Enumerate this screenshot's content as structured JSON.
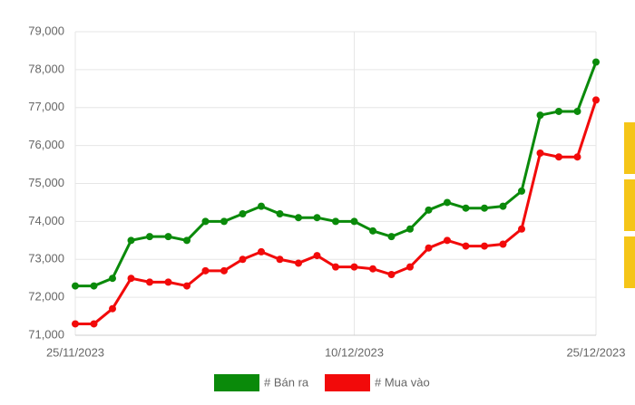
{
  "chart_data": {
    "type": "line",
    "categories": [
      "25/11/2023",
      null,
      null,
      null,
      null,
      null,
      null,
      null,
      null,
      null,
      null,
      null,
      null,
      null,
      null,
      "10/12/2023",
      null,
      null,
      null,
      null,
      null,
      null,
      null,
      null,
      null,
      null,
      null,
      null,
      "25/12/2023"
    ],
    "series": [
      {
        "name": "# Bán ra",
        "color": "#0a8a0a",
        "values": [
          72300,
          72300,
          72500,
          73500,
          73600,
          73600,
          73500,
          74000,
          74000,
          74200,
          74400,
          74200,
          74100,
          74100,
          74000,
          74000,
          73750,
          73600,
          73800,
          74300,
          74500,
          74350,
          74350,
          74400,
          74800,
          76800,
          76900,
          76900,
          78200
        ]
      },
      {
        "name": "# Mua vào",
        "color": "#f20a0a",
        "values": [
          71300,
          71300,
          71700,
          72500,
          72400,
          72400,
          72300,
          72700,
          72700,
          73000,
          73200,
          73000,
          72900,
          73100,
          72800,
          72800,
          72750,
          72600,
          72800,
          73300,
          73500,
          73350,
          73350,
          73400,
          73800,
          75800,
          75700,
          75700,
          77200
        ]
      }
    ],
    "ylim": [
      71000,
      79000
    ],
    "yticks": [
      {
        "value": 71000,
        "label": "71,000"
      },
      {
        "value": 72000,
        "label": "72,000"
      },
      {
        "value": 73000,
        "label": "73,000"
      },
      {
        "value": 74000,
        "label": "74,000"
      },
      {
        "value": 75000,
        "label": "75,000"
      },
      {
        "value": 76000,
        "label": "76,000"
      },
      {
        "value": 77000,
        "label": "77,000"
      },
      {
        "value": 78000,
        "label": "78,000"
      },
      {
        "value": 79000,
        "label": "79,000"
      }
    ],
    "grid": true,
    "legend": "bottom"
  }
}
